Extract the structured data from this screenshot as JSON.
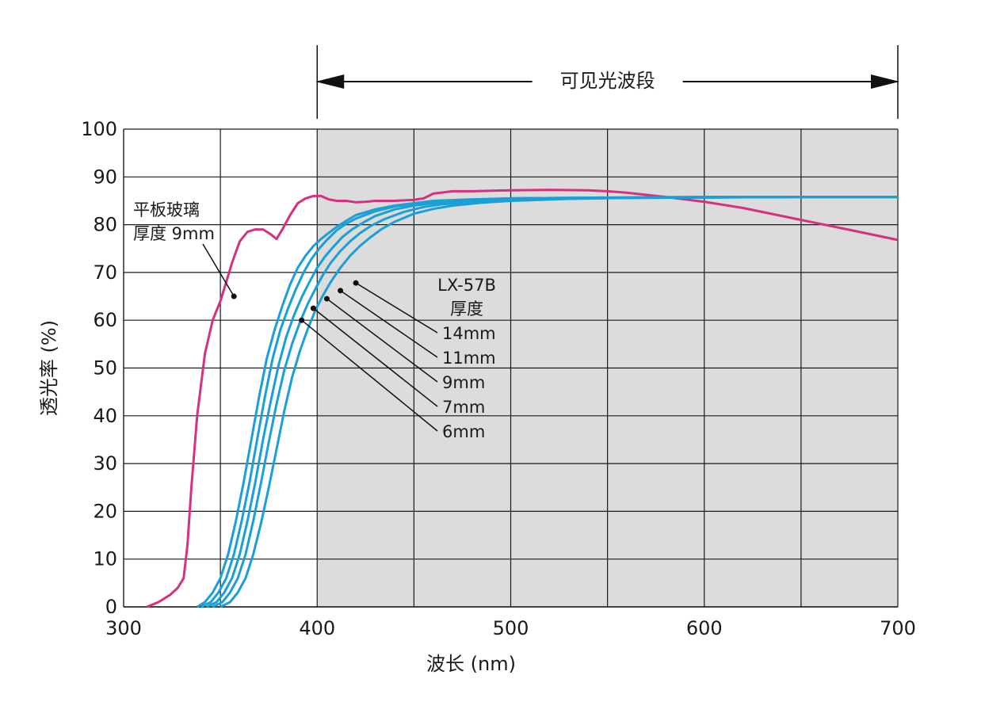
{
  "chart_data": {
    "type": "line",
    "xlabel": "波长 (nm)",
    "ylabel": "透光率 (%)",
    "xlim": [
      300,
      700
    ],
    "ylim": [
      0,
      100
    ],
    "x_ticks": [
      "300",
      "400",
      "500",
      "600",
      "700"
    ],
    "y_ticks": [
      "0",
      "10",
      "20",
      "30",
      "40",
      "50",
      "60",
      "70",
      "80",
      "90",
      "100"
    ],
    "grid": true,
    "x_gridlines": [
      350,
      400,
      450,
      500,
      550,
      600,
      650,
      700
    ],
    "shaded_band": {
      "from": 400,
      "to": 700,
      "color": "#dcdcdc"
    },
    "band_label": "可见光波段",
    "colors": {
      "glass": "#d6307f",
      "lx57b": "#1a9fd6",
      "grid": "#1a1a1a",
      "band": "#dcdcdc"
    },
    "glass_label": {
      "line1": "平板玻璃",
      "line2": "厚度 9mm",
      "pointer_x": 357,
      "pointer_y": 65
    },
    "lx_group_label": {
      "line1": "LX-57B",
      "line2": "厚度"
    },
    "series": [
      {
        "name": "平板玻璃 厚度 9mm",
        "color": "#d6307f",
        "x": [
          312,
          318,
          324,
          328,
          331,
          333,
          335,
          338,
          342,
          346,
          350,
          353,
          356,
          360,
          364,
          368,
          372,
          376,
          379,
          382,
          386,
          390,
          394,
          398,
          402,
          406,
          410,
          415,
          420,
          425,
          430,
          440,
          450,
          455,
          460,
          470,
          480,
          500,
          520,
          540,
          550,
          560,
          580,
          600,
          620,
          650,
          680,
          700
        ],
        "y": [
          0,
          1,
          2.5,
          4,
          6,
          13,
          25,
          40,
          53,
          60,
          64,
          68,
          72,
          76.5,
          78.5,
          79,
          79,
          78,
          77,
          79,
          82,
          84.5,
          85.5,
          86,
          86,
          85.3,
          85,
          85,
          84.7,
          84.8,
          85,
          85,
          85.2,
          85.5,
          86.5,
          87,
          87,
          87.2,
          87.3,
          87.2,
          87,
          86.7,
          85.8,
          84.8,
          83.5,
          81,
          78.5,
          76.8
        ]
      },
      {
        "name": "6mm",
        "color": "#1a9fd6",
        "x": [
          338,
          342,
          346,
          350,
          354,
          358,
          362,
          366,
          370,
          374,
          378,
          382,
          386,
          390,
          394,
          398,
          402,
          406,
          410,
          415,
          420,
          430,
          440,
          450,
          460,
          480,
          500,
          530,
          560,
          600,
          650,
          700
        ],
        "y": [
          0,
          1,
          3,
          6,
          11,
          18,
          26,
          35,
          44,
          52,
          58,
          63,
          67.5,
          71,
          73.5,
          75.5,
          77,
          78.3,
          79.5,
          80.8,
          82,
          83.2,
          84,
          84.5,
          85,
          85.3,
          85.5,
          85.6,
          85.7,
          85.8,
          85.8,
          85.8
        ]
      },
      {
        "name": "7mm",
        "color": "#1a9fd6",
        "x": [
          340,
          345,
          349,
          353,
          357,
          361,
          365,
          369,
          373,
          377,
          381,
          385,
          389,
          393,
          397,
          401,
          405,
          410,
          415,
          420,
          430,
          440,
          450,
          460,
          480,
          500,
          530,
          560,
          600,
          650,
          700
        ],
        "y": [
          0,
          1,
          3,
          6,
          11,
          18,
          26,
          35,
          44,
          52,
          58,
          62.5,
          66.5,
          70,
          72.8,
          75,
          76.8,
          78.8,
          80.2,
          81.3,
          82.8,
          83.8,
          84.4,
          84.8,
          85.2,
          85.5,
          85.6,
          85.7,
          85.8,
          85.8,
          85.8
        ]
      },
      {
        "name": "9mm",
        "color": "#1a9fd6",
        "x": [
          343,
          348,
          352,
          356,
          360,
          364,
          368,
          372,
          376,
          380,
          384,
          388,
          392,
          396,
          400,
          404,
          408,
          413,
          418,
          424,
          430,
          440,
          450,
          460,
          480,
          500,
          530,
          560,
          600,
          650,
          700
        ],
        "y": [
          0,
          1,
          3,
          6,
          11,
          18,
          26,
          35,
          43,
          50.5,
          56.5,
          61,
          64.8,
          68,
          71,
          73.3,
          75.2,
          77.4,
          79,
          80.5,
          81.8,
          83.2,
          84,
          84.5,
          85,
          85.3,
          85.5,
          85.6,
          85.7,
          85.8,
          85.8
        ]
      },
      {
        "name": "11mm",
        "color": "#1a9fd6",
        "x": [
          346,
          351,
          355,
          359,
          363,
          367,
          371,
          375,
          379,
          383,
          387,
          391,
          395,
          399,
          403,
          407,
          412,
          417,
          422,
          428,
          435,
          445,
          455,
          465,
          480,
          500,
          530,
          560,
          600,
          650,
          700
        ],
        "y": [
          0,
          1,
          3,
          6,
          11,
          18,
          26,
          34.5,
          42.5,
          49.5,
          55,
          59.5,
          63.3,
          66.5,
          69.5,
          72,
          74.5,
          76.5,
          78.2,
          79.8,
          81.2,
          82.7,
          83.7,
          84.3,
          84.8,
          85.2,
          85.5,
          85.6,
          85.7,
          85.8,
          85.8
        ]
      },
      {
        "name": "14mm",
        "color": "#1a9fd6",
        "x": [
          350,
          355,
          359,
          363,
          367,
          371,
          375,
          379,
          383,
          387,
          391,
          395,
          399,
          403,
          407,
          412,
          417,
          422,
          427,
          433,
          440,
          450,
          460,
          470,
          485,
          500,
          530,
          560,
          600,
          650,
          700
        ],
        "y": [
          0,
          1,
          3,
          6,
          11,
          17.5,
          25,
          33,
          41,
          48,
          53.5,
          58,
          62,
          65.2,
          68,
          71,
          73.5,
          75.5,
          77.2,
          79,
          80.6,
          82.3,
          83.3,
          84,
          84.6,
          85,
          85.4,
          85.6,
          85.7,
          85.8,
          85.8
        ]
      }
    ],
    "lx_labels": [
      {
        "text": "14mm",
        "x": 420,
        "y": 67.8
      },
      {
        "text": "11mm",
        "x": 412,
        "y": 66.2
      },
      {
        "text": "9mm",
        "x": 405,
        "y": 64.5
      },
      {
        "text": "7mm",
        "x": 398,
        "y": 62.5
      },
      {
        "text": "6mm",
        "x": 392,
        "y": 60
      }
    ]
  }
}
